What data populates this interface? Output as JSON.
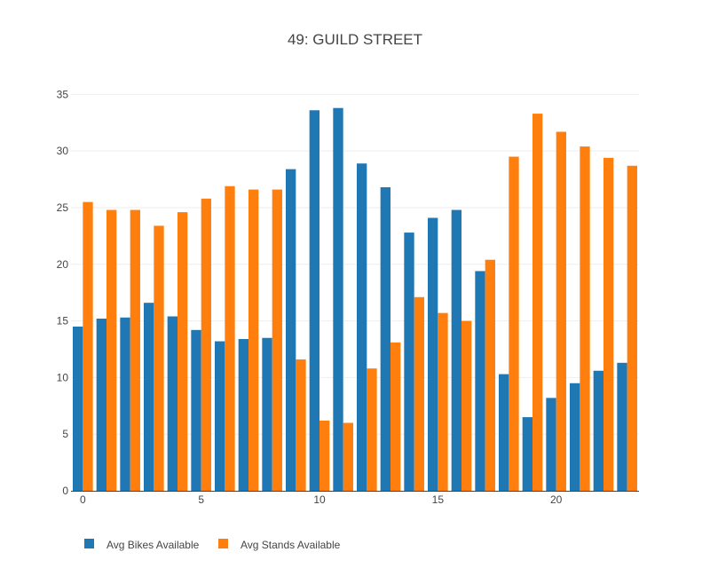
{
  "chart_data": {
    "type": "bar",
    "title": "49: GUILD STREET",
    "xlabel": "",
    "ylabel": "",
    "x": [
      0,
      1,
      2,
      3,
      4,
      5,
      6,
      7,
      8,
      9,
      10,
      11,
      12,
      13,
      14,
      15,
      16,
      17,
      18,
      19,
      20,
      21,
      22,
      23
    ],
    "x_ticks": [
      0,
      5,
      10,
      15,
      20
    ],
    "y_ticks": [
      0,
      5,
      10,
      15,
      20,
      25,
      30,
      35
    ],
    "xlim": [
      -0.5,
      23.5
    ],
    "ylim": [
      0,
      35.5
    ],
    "grid": true,
    "legend_position": "bottom-left, horizontal",
    "series": [
      {
        "name": "Avg Bikes Available",
        "color": "#1f77b4",
        "values": [
          14.5,
          15.2,
          15.3,
          16.6,
          15.4,
          14.2,
          13.2,
          13.4,
          13.5,
          28.4,
          33.6,
          33.8,
          28.9,
          26.8,
          22.8,
          24.1,
          24.8,
          19.4,
          10.3,
          6.5,
          8.2,
          9.5,
          10.6,
          11.3
        ]
      },
      {
        "name": "Avg Stands Available",
        "color": "#ff7f0e",
        "values": [
          25.5,
          24.8,
          24.8,
          23.4,
          24.6,
          25.8,
          26.9,
          26.6,
          26.6,
          11.6,
          6.2,
          6.0,
          10.8,
          13.1,
          17.1,
          15.7,
          15.0,
          20.4,
          29.5,
          33.3,
          31.7,
          30.4,
          29.4,
          28.7
        ]
      }
    ]
  }
}
